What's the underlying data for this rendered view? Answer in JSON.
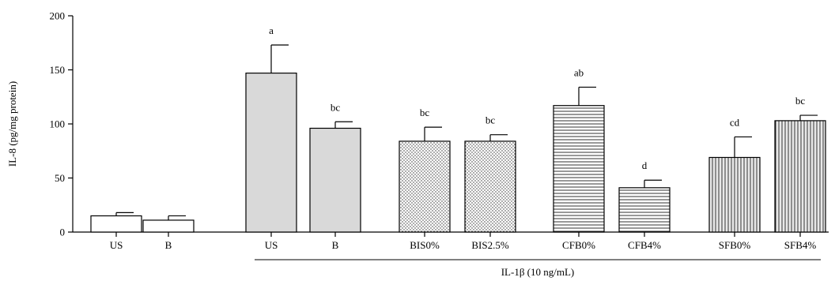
{
  "chart_data": {
    "type": "bar",
    "title": "",
    "ylabel": "IL-8 (pg/mg protein)",
    "xlabel": "",
    "ylim": [
      0,
      200
    ],
    "yticks": [
      0,
      50,
      100,
      150,
      200
    ],
    "group_label": "IL-1β (10 ng/mL)",
    "bars": [
      {
        "category": "US",
        "value": 15,
        "error": 3,
        "sig": "",
        "fill": "white"
      },
      {
        "category": "B",
        "value": 11,
        "error": 4,
        "sig": "",
        "fill": "white"
      },
      {
        "category": "US",
        "value": 147,
        "error": 26,
        "sig": "a",
        "fill": "gray"
      },
      {
        "category": "B",
        "value": 96,
        "error": 6,
        "sig": "bc",
        "fill": "gray"
      },
      {
        "category": "BIS0%",
        "value": 84,
        "error": 13,
        "sig": "bc",
        "fill": "dots"
      },
      {
        "category": "BIS2.5%",
        "value": 84,
        "error": 6,
        "sig": "bc",
        "fill": "dots"
      },
      {
        "category": "CFB0%",
        "value": 117,
        "error": 17,
        "sig": "ab",
        "fill": "hlines"
      },
      {
        "category": "CFB4%",
        "value": 41,
        "error": 7,
        "sig": "d",
        "fill": "hlines"
      },
      {
        "category": "SFB0%",
        "value": 69,
        "error": 19,
        "sig": "cd",
        "fill": "vlines"
      },
      {
        "category": "SFB4%",
        "value": 103,
        "error": 5,
        "sig": "bc",
        "fill": "vlines"
      }
    ],
    "colors": {
      "gray_fill": "#d9d9d9",
      "white_fill": "#ffffff",
      "stroke": "#000000"
    }
  }
}
